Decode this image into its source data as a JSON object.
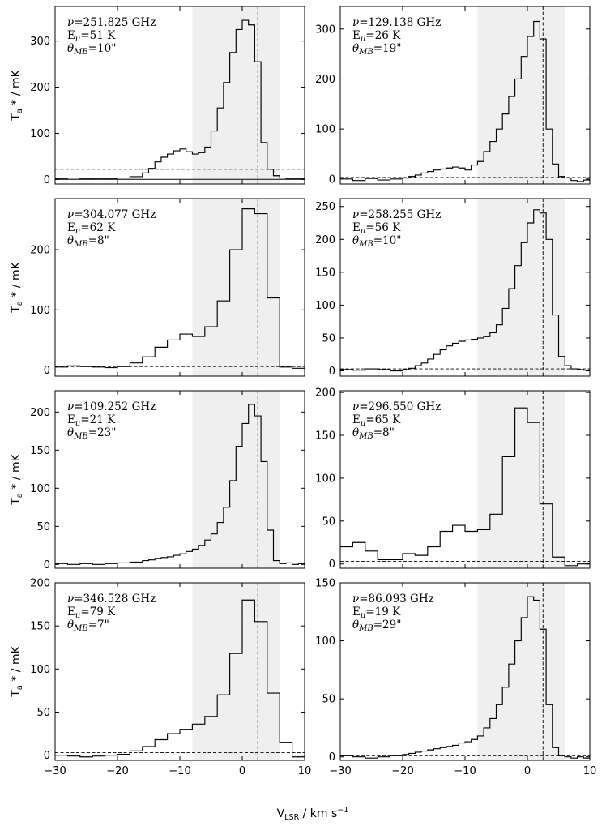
{
  "figure": {
    "xlabel": "V$_{LSR}$ / km s$^{-1}$",
    "xlabel_main": "V",
    "xlabel_sub": "LSR",
    "xlabel_rest": " / km s",
    "xlabel_sup": "−1",
    "ylabel_main": "T",
    "ylabel_sub": "a",
    "ylabel_rest": " * / mK",
    "xlim": [
      -30,
      10
    ],
    "xticks": [
      -30,
      -20,
      -10,
      0,
      10
    ],
    "shade_range": [
      -8,
      6
    ],
    "vline": 2.5
  },
  "chart_data": [
    {
      "type": "line",
      "style": "step",
      "nu": "251.825 GHz",
      "Eu": "51 K",
      "theta": "10\"",
      "ylim": [
        -10,
        375
      ],
      "yticks": [
        0,
        100,
        200,
        300
      ],
      "hline": 22,
      "zero_line": true,
      "x": [
        -30,
        -28,
        -26,
        -24,
        -22,
        -20,
        -18,
        -16,
        -15,
        -14,
        -13,
        -12,
        -11,
        -10,
        -9,
        -8,
        -7,
        -6,
        -5,
        -4,
        -3,
        -2,
        -1,
        0,
        1,
        2,
        3,
        4,
        5,
        6,
        7,
        8,
        9,
        10
      ],
      "y": [
        2,
        3,
        1,
        2,
        1,
        3,
        6,
        14,
        24,
        38,
        48,
        55,
        62,
        66,
        60,
        55,
        58,
        70,
        105,
        155,
        210,
        275,
        325,
        345,
        335,
        255,
        80,
        22,
        8,
        3,
        2,
        1,
        1,
        2
      ]
    },
    {
      "type": "line",
      "style": "step",
      "nu": "129.138 GHz",
      "Eu": "26 K",
      "theta": "19\"",
      "ylim": [
        -10,
        345
      ],
      "yticks": [
        0,
        100,
        200,
        300
      ],
      "hline": 3,
      "zero_line": false,
      "x": [
        -30,
        -28,
        -26,
        -24,
        -22,
        -20,
        -19,
        -18,
        -17,
        -16,
        -15,
        -14,
        -13,
        -12,
        -11,
        -10,
        -9,
        -8,
        -7,
        -6,
        -5,
        -4,
        -3,
        -2,
        -1,
        0,
        1,
        2,
        3,
        4,
        5,
        6,
        7,
        8,
        9,
        10
      ],
      "y": [
        0,
        -3,
        1,
        -2,
        0,
        2,
        5,
        8,
        12,
        15,
        18,
        20,
        22,
        24,
        22,
        18,
        28,
        35,
        55,
        75,
        100,
        130,
        165,
        200,
        245,
        285,
        315,
        280,
        100,
        30,
        5,
        2,
        -3,
        -5,
        -2,
        0
      ]
    },
    {
      "type": "line",
      "style": "step",
      "nu": "304.077 GHz",
      "Eu": "62 K",
      "theta": "8\"",
      "ylim": [
        -10,
        285
      ],
      "yticks": [
        0,
        100,
        200
      ],
      "hline": 6,
      "zero_line": false,
      "x": [
        -30,
        -28,
        -26,
        -24,
        -22,
        -20,
        -18,
        -16,
        -14,
        -12,
        -10,
        -8,
        -6,
        -4,
        -2,
        0,
        2,
        4,
        6,
        8,
        10
      ],
      "y": [
        5,
        7,
        6,
        5,
        4,
        6,
        12,
        22,
        38,
        50,
        60,
        56,
        72,
        115,
        200,
        268,
        260,
        120,
        5,
        3,
        5
      ]
    },
    {
      "type": "line",
      "style": "step",
      "nu": "258.255 GHz",
      "Eu": "56 K",
      "theta": "10\"",
      "ylim": [
        -8,
        262
      ],
      "yticks": [
        0,
        50,
        100,
        150,
        200,
        250
      ],
      "hline": 3,
      "zero_line": false,
      "x": [
        -30,
        -28,
        -26,
        -24,
        -22,
        -20,
        -19,
        -18,
        -17,
        -16,
        -15,
        -14,
        -13,
        -12,
        -11,
        -10,
        -9,
        -8,
        -7,
        -6,
        -5,
        -4,
        -3,
        -2,
        -1,
        0,
        1,
        2,
        3,
        4,
        5,
        6,
        7,
        8,
        9,
        10
      ],
      "y": [
        2,
        1,
        3,
        2,
        0,
        2,
        4,
        8,
        12,
        18,
        25,
        32,
        38,
        42,
        45,
        47,
        48,
        50,
        52,
        58,
        70,
        95,
        125,
        160,
        195,
        225,
        245,
        240,
        200,
        85,
        22,
        8,
        3,
        2,
        1,
        2
      ]
    },
    {
      "type": "line",
      "style": "step",
      "nu": "109.252 GHz",
      "Eu": "21 K",
      "theta": "23\"",
      "ylim": [
        -5,
        228
      ],
      "yticks": [
        0,
        50,
        100,
        150,
        200
      ],
      "hline": 2,
      "zero_line": false,
      "x": [
        -30,
        -28,
        -26,
        -24,
        -22,
        -20,
        -18,
        -16,
        -15,
        -14,
        -13,
        -12,
        -11,
        -10,
        -9,
        -8,
        -7,
        -6,
        -5,
        -4,
        -3,
        -2,
        -1,
        0,
        1,
        2,
        3,
        4,
        5,
        6,
        7,
        8,
        9,
        10
      ],
      "y": [
        1,
        0,
        1,
        0,
        1,
        2,
        3,
        5,
        6,
        8,
        9,
        10,
        12,
        14,
        17,
        20,
        25,
        32,
        40,
        55,
        75,
        110,
        155,
        185,
        210,
        195,
        135,
        45,
        5,
        1,
        2,
        0,
        1,
        0
      ]
    },
    {
      "type": "line",
      "style": "step",
      "nu": "296.550 GHz",
      "Eu": "65 K",
      "theta": "8\"",
      "ylim": [
        -5,
        202
      ],
      "yticks": [
        0,
        50,
        100,
        150,
        200
      ],
      "hline": 3,
      "zero_line": false,
      "x": [
        -30,
        -28,
        -26,
        -24,
        -22,
        -20,
        -18,
        -16,
        -14,
        -12,
        -10,
        -8,
        -6,
        -4,
        -2,
        0,
        2,
        4,
        6,
        8,
        10
      ],
      "y": [
        20,
        25,
        15,
        5,
        5,
        12,
        10,
        20,
        38,
        45,
        38,
        40,
        58,
        125,
        182,
        165,
        70,
        8,
        -2,
        0,
        2
      ]
    },
    {
      "type": "line",
      "style": "step",
      "nu": "346.528 GHz",
      "Eu": "79 K",
      "theta": "7\"",
      "ylim": [
        -6,
        200
      ],
      "yticks": [
        0,
        50,
        100,
        150,
        200
      ],
      "hline": 3,
      "zero_line": false,
      "x": [
        -30,
        -28,
        -26,
        -24,
        -22,
        -20,
        -18,
        -16,
        -14,
        -12,
        -10,
        -8,
        -6,
        -4,
        -2,
        0,
        2,
        4,
        6,
        8,
        10
      ],
      "y": [
        0,
        -1,
        -2,
        -1,
        0,
        1,
        5,
        10,
        18,
        25,
        30,
        36,
        45,
        70,
        118,
        180,
        155,
        72,
        15,
        -2,
        0
      ]
    },
    {
      "type": "line",
      "style": "step",
      "nu": "86.093 GHz",
      "Eu": "19 K",
      "theta": "29\"",
      "ylim": [
        -3,
        150
      ],
      "yticks": [
        0,
        50,
        100,
        150
      ],
      "hline": 1,
      "zero_line": false,
      "x": [
        -30,
        -28,
        -26,
        -24,
        -22,
        -20,
        -19,
        -18,
        -17,
        -16,
        -15,
        -14,
        -13,
        -12,
        -11,
        -10,
        -9,
        -8,
        -7,
        -6,
        -5,
        -4,
        -3,
        -2,
        -1,
        0,
        1,
        2,
        3,
        4,
        5,
        6,
        7,
        8,
        9,
        10
      ],
      "y": [
        1,
        0,
        -1,
        0,
        1,
        2,
        3,
        4,
        5,
        6,
        7,
        8,
        9,
        10,
        12,
        13,
        15,
        18,
        25,
        33,
        45,
        60,
        80,
        100,
        120,
        138,
        135,
        110,
        45,
        8,
        1,
        0,
        -1,
        0,
        -1,
        0
      ]
    }
  ]
}
